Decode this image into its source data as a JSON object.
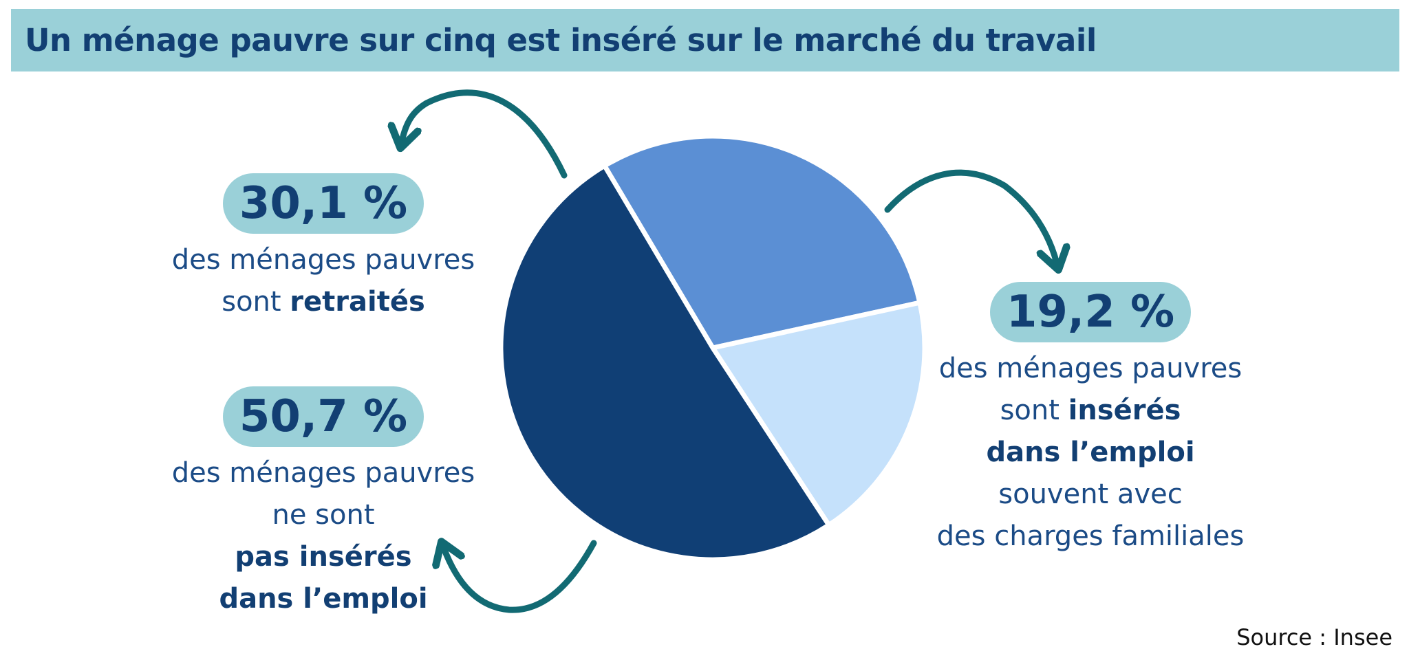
{
  "title": "Un ménage pauvre sur cinq est inséré sur le marché du travail",
  "source": "Source : Insee",
  "colors": {
    "title_bg": "#9ad0d8",
    "title_text": "#123f73",
    "arrow": "#126a73",
    "slice_separator": "#ffffff"
  },
  "chart_data": {
    "type": "pie",
    "title": "Un ménage pauvre sur cinq est inséré sur le marché du travail",
    "unit": "%",
    "slices": [
      {
        "label": "sont retraités",
        "value": 30.1,
        "color": "#5b8fd4"
      },
      {
        "label": "sont insérés dans l'emploi",
        "value": 19.2,
        "color": "#c5e1fb"
      },
      {
        "label": "ne sont pas insérés dans l'emploi",
        "value": 50.7,
        "color": "#103f75"
      }
    ]
  },
  "labels": {
    "retired": {
      "pct": "30,1 %",
      "line1": "des ménages pauvres",
      "line2_pre": "sont ",
      "line2_bold": "retraités"
    },
    "employed": {
      "pct": "19,2 %",
      "line1": "des ménages pauvres",
      "line2_pre": "sont ",
      "line2_bold": "insérés",
      "line3_bold": "dans l’emploi",
      "line4": "souvent avec",
      "line5": "des charges familiales"
    },
    "not_employed": {
      "pct": "50,7 %",
      "line1": "des ménages pauvres",
      "line2": "ne sont",
      "line3_bold": "pas insérés",
      "line4_bold": "dans l’emploi"
    }
  }
}
